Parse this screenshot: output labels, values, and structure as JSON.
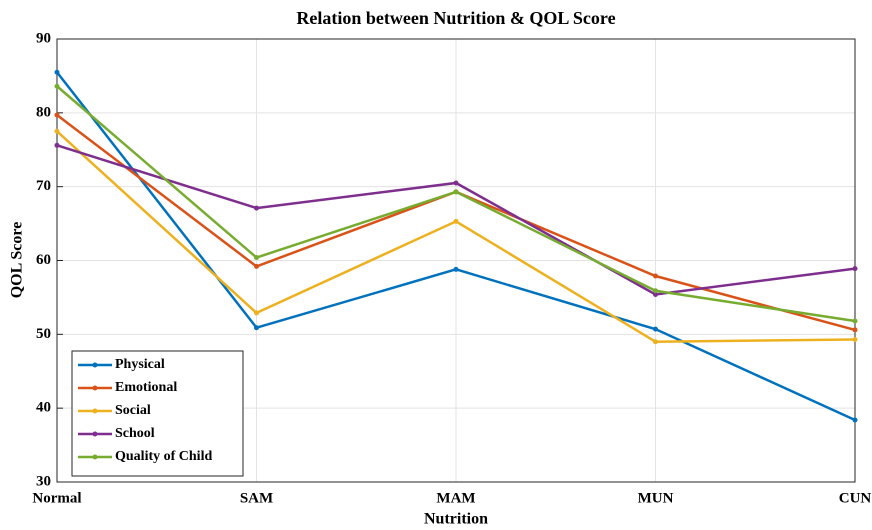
{
  "chart_data": {
    "type": "line",
    "title": "Relation between Nutrition & QOL Score",
    "xlabel": "Nutrition",
    "ylabel": "QOL Score",
    "categories": [
      "Normal",
      "SAM",
      "MAM",
      "MUN",
      "CUN"
    ],
    "series": [
      {
        "name": "Physical",
        "color": "#0072bd",
        "values": [
          85.5,
          50.9,
          58.8,
          50.7,
          38.4
        ]
      },
      {
        "name": "Emotional",
        "color": "#d95319",
        "values": [
          79.7,
          59.2,
          69.3,
          57.9,
          50.6
        ]
      },
      {
        "name": "Social",
        "color": "#edb120",
        "values": [
          77.5,
          52.9,
          65.3,
          49.0,
          49.3
        ]
      },
      {
        "name": "School",
        "color": "#7e2f8e",
        "values": [
          75.6,
          67.1,
          70.5,
          55.4,
          58.9
        ]
      },
      {
        "name": "Quality of Child",
        "color": "#77ac30",
        "values": [
          83.6,
          60.4,
          69.3,
          55.9,
          51.8
        ]
      }
    ],
    "ylim": [
      30,
      90
    ],
    "yticks": [
      30,
      40,
      50,
      60,
      70,
      80,
      90
    ],
    "grid": true,
    "legend": "lower left"
  }
}
